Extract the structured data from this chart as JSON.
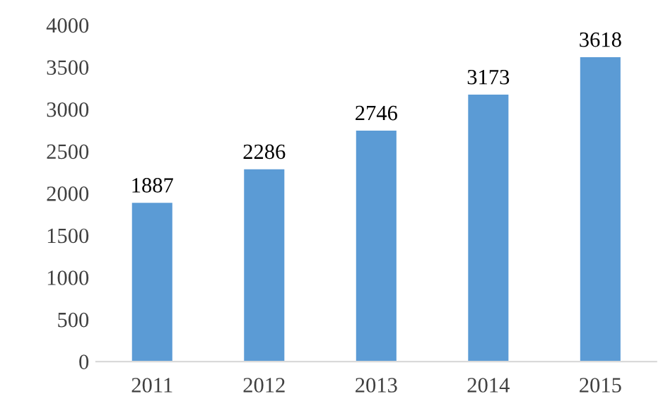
{
  "chart_data": {
    "type": "bar",
    "categories": [
      "2011",
      "2012",
      "2013",
      "2014",
      "2015"
    ],
    "values": [
      1887,
      2286,
      2746,
      3173,
      3618
    ],
    "color": "#5b9bd5",
    "ylim": [
      0,
      4000
    ],
    "yticks": [
      0,
      500,
      1000,
      1500,
      2000,
      2500,
      3000,
      3500,
      4000
    ],
    "data_labels": true,
    "grid": false,
    "legend": false
  }
}
